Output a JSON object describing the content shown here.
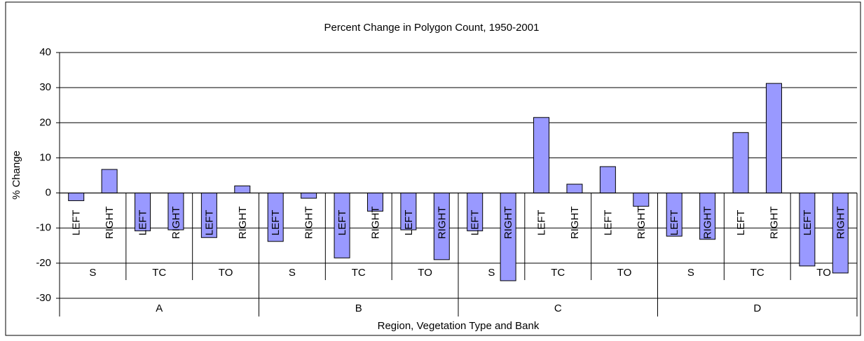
{
  "chart_data": {
    "type": "bar",
    "title": "Percent Change in Polygon Count, 1950-2001",
    "y_label": "% Change",
    "x_label": "Region, Vegetation Type and Bank",
    "categories": [
      "LEFT",
      "RIGHT",
      "LEFT",
      "RIGHT",
      "LEFT",
      "RIGHT",
      "LEFT",
      "RIGHT",
      "LEFT",
      "RIGHT",
      "LEFT",
      "RIGHT",
      "LEFT",
      "RIGHT",
      "LEFT",
      "RIGHT",
      "LEFT",
      "RIGHT",
      "LEFT",
      "RIGHT",
      "LEFT",
      "RIGHT",
      "LEFT",
      "RIGHT"
    ],
    "groups": [
      "S",
      "TC",
      "TO",
      "S",
      "TC",
      "TO",
      "S",
      "TC",
      "TO",
      "S",
      "TC",
      "TO"
    ],
    "regions": [
      "A",
      "B",
      "C",
      "D"
    ],
    "values": [
      -2.2,
      6.7,
      -10.8,
      -10.5,
      -12.7,
      2.0,
      -13.8,
      -1.5,
      -18.5,
      -5.2,
      -10.5,
      -19.0,
      -10.8,
      -25.0,
      21.5,
      2.5,
      7.5,
      -3.8,
      -12.3,
      -13.2,
      17.2,
      31.2,
      -20.8,
      -22.8
    ],
    "color": "#9999ff",
    "ylim": [
      -30,
      40
    ],
    "yticks": [
      -30,
      -20,
      -10,
      0,
      10,
      20,
      30,
      40
    ],
    "grid": true
  }
}
